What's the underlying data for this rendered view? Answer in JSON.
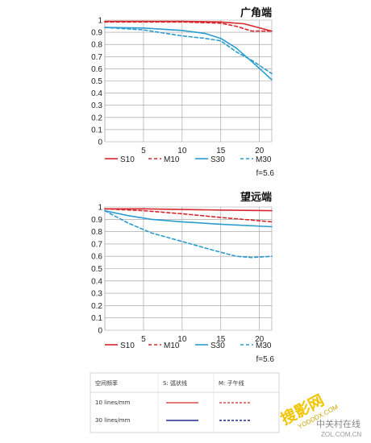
{
  "colors": {
    "sagittal_red": "#d8262c",
    "meridional_red": "#d8262c",
    "sagittal_blue": "#2a9ccf",
    "meridional_blue": "#2a9ccf",
    "grid": "#9a9a9a",
    "table_red": "#d8262c",
    "table_blue": "#1f2a8c"
  },
  "chart_data": [
    {
      "type": "line",
      "title": "广角端",
      "xlim": [
        0,
        21.6
      ],
      "ylim": [
        0,
        1
      ],
      "x_ticks": [
        "5",
        "10",
        "15",
        "20"
      ],
      "y_ticks": [
        "0",
        "0.1",
        "0.2",
        "0.3",
        "0.4",
        "0.5",
        "0.6",
        "0.7",
        "0.8",
        "0.9",
        "1"
      ],
      "grid": true,
      "f_number": "f=5.6",
      "series": [
        {
          "name": "S10",
          "style": "solid",
          "color": "#d8262c",
          "x": [
            0,
            5,
            10,
            15,
            18,
            21.6
          ],
          "y": [
            0.99,
            0.99,
            0.99,
            0.985,
            0.97,
            0.91
          ]
        },
        {
          "name": "M10",
          "style": "dashed",
          "color": "#d8262c",
          "x": [
            0,
            5,
            10,
            15,
            17,
            19,
            21.6
          ],
          "y": [
            0.985,
            0.985,
            0.985,
            0.975,
            0.95,
            0.91,
            0.91
          ]
        },
        {
          "name": "S30",
          "style": "solid",
          "color": "#2a9ccf",
          "x": [
            0,
            5,
            10,
            13,
            15,
            17,
            19,
            21.6
          ],
          "y": [
            0.94,
            0.935,
            0.915,
            0.89,
            0.85,
            0.77,
            0.66,
            0.51
          ]
        },
        {
          "name": "M30",
          "style": "dashed",
          "color": "#2a9ccf",
          "x": [
            0,
            5,
            10,
            13,
            15,
            17,
            19,
            21.6
          ],
          "y": [
            0.94,
            0.92,
            0.87,
            0.85,
            0.83,
            0.74,
            0.67,
            0.56
          ]
        }
      ]
    },
    {
      "type": "line",
      "title": "望远端",
      "xlim": [
        0,
        21.6
      ],
      "ylim": [
        0,
        1
      ],
      "x_ticks": [
        "5",
        "10",
        "15",
        "20"
      ],
      "y_ticks": [
        "0",
        "0.1",
        "0.2",
        "0.3",
        "0.4",
        "0.5",
        "0.6",
        "0.7",
        "0.8",
        "0.9",
        "1"
      ],
      "grid": true,
      "f_number": "f=5.6",
      "series": [
        {
          "name": "S10",
          "style": "solid",
          "color": "#d8262c",
          "x": [
            0,
            5,
            10,
            15,
            21.6
          ],
          "y": [
            0.985,
            0.985,
            0.98,
            0.975,
            0.97
          ]
        },
        {
          "name": "M10",
          "style": "dashed",
          "color": "#d8262c",
          "x": [
            0,
            5,
            10,
            15,
            21.6
          ],
          "y": [
            0.985,
            0.97,
            0.945,
            0.915,
            0.88
          ]
        },
        {
          "name": "S30",
          "style": "solid",
          "color": "#2a9ccf",
          "x": [
            0,
            3,
            6,
            10,
            15,
            21.6
          ],
          "y": [
            0.97,
            0.93,
            0.9,
            0.88,
            0.86,
            0.84
          ]
        },
        {
          "name": "M30",
          "style": "dashed",
          "color": "#2a9ccf",
          "x": [
            0,
            3,
            6,
            10,
            14,
            17,
            19,
            21.6
          ],
          "y": [
            0.97,
            0.87,
            0.79,
            0.72,
            0.65,
            0.6,
            0.59,
            0.6
          ]
        }
      ]
    }
  ],
  "legend_table": {
    "header": [
      "空间频率",
      "S: 弧状线",
      "M: 子午线"
    ],
    "rows": [
      {
        "label": "10 lines/mm",
        "s_color": "#d8262c",
        "m_color": "#d8262c"
      },
      {
        "label": "30 lines/mm",
        "s_color": "#1f2a8c",
        "m_color": "#1f2a8c"
      }
    ]
  },
  "watermark": {
    "main": "搜影网",
    "sub": "YODDDX.COM",
    "brand": "中关村在线",
    "brand_sub": "ZOL.COM.CN"
  }
}
